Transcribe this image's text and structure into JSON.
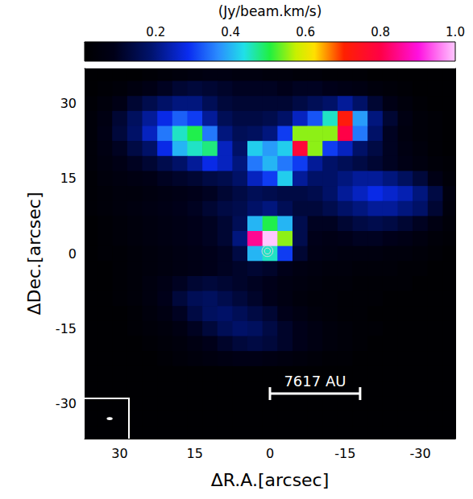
{
  "chart_data": {
    "type": "heatmap",
    "xlabel": "ΔR.A.[arcsec]",
    "ylabel": "ΔDec.[arcsec]",
    "xlim": [
      37,
      -37
    ],
    "ylim": [
      -37,
      37
    ],
    "xticks": [
      30,
      15,
      0,
      -15,
      -30
    ],
    "yticks": [
      -30,
      -15,
      0,
      15,
      30
    ],
    "x": [
      36,
      33,
      30,
      27,
      24,
      21,
      18,
      15,
      12,
      9,
      6,
      3,
      0,
      -3,
      -6,
      -9,
      -12,
      -15,
      -18,
      -21,
      -24,
      -27,
      -30,
      -33,
      -36
    ],
    "y": [
      36,
      33,
      30,
      27,
      24,
      21,
      18,
      15,
      12,
      9,
      6,
      3,
      0,
      -3,
      -6,
      -9,
      -12,
      -15,
      -18,
      -21,
      -24,
      -27,
      -30,
      -33,
      -36
    ],
    "z": [
      [
        0.02,
        0.02,
        0.02,
        0.02,
        0.03,
        0.04,
        0.05,
        0.06,
        0.07,
        0.07,
        0.06,
        0.06,
        0.05,
        0.05,
        0.04,
        0.04,
        0.03,
        0.03,
        0.03,
        0.02,
        0.02,
        0.02,
        0.02,
        0.02,
        0.02
      ],
      [
        0.02,
        0.03,
        0.04,
        0.06,
        0.08,
        0.1,
        0.12,
        0.13,
        0.12,
        0.11,
        0.1,
        0.1,
        0.1,
        0.09,
        0.1,
        0.1,
        0.09,
        0.08,
        0.07,
        0.05,
        0.04,
        0.03,
        0.02,
        0.02,
        0.02
      ],
      [
        0.03,
        0.05,
        0.08,
        0.12,
        0.15,
        0.18,
        0.2,
        0.2,
        0.16,
        0.13,
        0.12,
        0.12,
        0.12,
        0.12,
        0.14,
        0.16,
        0.18,
        0.22,
        0.18,
        0.12,
        0.08,
        0.05,
        0.03,
        0.02,
        0.02
      ],
      [
        0.04,
        0.07,
        0.12,
        0.17,
        0.22,
        0.28,
        0.33,
        0.3,
        0.22,
        0.16,
        0.14,
        0.14,
        0.15,
        0.18,
        0.25,
        0.32,
        0.45,
        0.72,
        0.38,
        0.2,
        0.12,
        0.07,
        0.04,
        0.03,
        0.02
      ],
      [
        0.04,
        0.08,
        0.13,
        0.18,
        0.25,
        0.35,
        0.45,
        0.5,
        0.35,
        0.2,
        0.16,
        0.17,
        0.2,
        0.3,
        0.55,
        0.55,
        0.55,
        0.8,
        0.35,
        0.18,
        0.1,
        0.06,
        0.04,
        0.03,
        0.02
      ],
      [
        0.04,
        0.07,
        0.1,
        0.14,
        0.18,
        0.28,
        0.4,
        0.45,
        0.48,
        0.25,
        0.18,
        0.42,
        0.38,
        0.42,
        0.78,
        0.55,
        0.3,
        0.25,
        0.18,
        0.14,
        0.1,
        0.07,
        0.05,
        0.03,
        0.02
      ],
      [
        0.04,
        0.06,
        0.08,
        0.1,
        0.12,
        0.15,
        0.18,
        0.22,
        0.28,
        0.25,
        0.2,
        0.35,
        0.4,
        0.35,
        0.3,
        0.22,
        0.18,
        0.16,
        0.14,
        0.12,
        0.1,
        0.08,
        0.06,
        0.04,
        0.03
      ],
      [
        0.03,
        0.05,
        0.06,
        0.07,
        0.08,
        0.1,
        0.11,
        0.12,
        0.14,
        0.15,
        0.18,
        0.25,
        0.3,
        0.42,
        0.22,
        0.18,
        0.18,
        0.2,
        0.22,
        0.22,
        0.2,
        0.17,
        0.13,
        0.08,
        0.04
      ],
      [
        0.03,
        0.04,
        0.05,
        0.05,
        0.06,
        0.07,
        0.08,
        0.09,
        0.1,
        0.12,
        0.14,
        0.16,
        0.15,
        0.14,
        0.14,
        0.15,
        0.18,
        0.22,
        0.25,
        0.28,
        0.26,
        0.24,
        0.2,
        0.14,
        0.06
      ],
      [
        0.03,
        0.04,
        0.05,
        0.06,
        0.07,
        0.08,
        0.09,
        0.1,
        0.12,
        0.14,
        0.15,
        0.18,
        0.2,
        0.16,
        0.13,
        0.13,
        0.15,
        0.18,
        0.2,
        0.22,
        0.22,
        0.2,
        0.18,
        0.12,
        0.05
      ],
      [
        0.02,
        0.03,
        0.04,
        0.05,
        0.06,
        0.07,
        0.08,
        0.09,
        0.1,
        0.12,
        0.16,
        0.4,
        0.5,
        0.4,
        0.15,
        0.1,
        0.1,
        0.12,
        0.14,
        0.15,
        0.14,
        0.12,
        0.1,
        0.07,
        0.04
      ],
      [
        0.02,
        0.03,
        0.04,
        0.05,
        0.06,
        0.07,
        0.08,
        0.09,
        0.1,
        0.12,
        0.2,
        0.85,
        1.0,
        0.55,
        0.15,
        0.09,
        0.08,
        0.09,
        0.1,
        0.1,
        0.09,
        0.08,
        0.06,
        0.04,
        0.03
      ],
      [
        0.02,
        0.03,
        0.03,
        0.04,
        0.05,
        0.06,
        0.07,
        0.08,
        0.09,
        0.1,
        0.14,
        0.4,
        0.45,
        0.3,
        0.12,
        0.08,
        0.07,
        0.06,
        0.06,
        0.06,
        0.05,
        0.05,
        0.04,
        0.03,
        0.02
      ],
      [
        0.02,
        0.02,
        0.03,
        0.04,
        0.05,
        0.06,
        0.07,
        0.08,
        0.09,
        0.1,
        0.11,
        0.12,
        0.11,
        0.09,
        0.07,
        0.06,
        0.05,
        0.05,
        0.04,
        0.04,
        0.04,
        0.03,
        0.03,
        0.02,
        0.02
      ],
      [
        0.02,
        0.02,
        0.03,
        0.04,
        0.06,
        0.08,
        0.1,
        0.12,
        0.13,
        0.12,
        0.11,
        0.1,
        0.09,
        0.07,
        0.06,
        0.05,
        0.04,
        0.04,
        0.03,
        0.03,
        0.03,
        0.03,
        0.02,
        0.02,
        0.02
      ],
      [
        0.02,
        0.02,
        0.03,
        0.04,
        0.06,
        0.09,
        0.13,
        0.16,
        0.17,
        0.15,
        0.13,
        0.11,
        0.09,
        0.07,
        0.05,
        0.04,
        0.04,
        0.03,
        0.03,
        0.03,
        0.02,
        0.02,
        0.02,
        0.02,
        0.02
      ],
      [
        0.02,
        0.02,
        0.02,
        0.03,
        0.05,
        0.07,
        0.1,
        0.14,
        0.17,
        0.18,
        0.16,
        0.14,
        0.12,
        0.09,
        0.07,
        0.05,
        0.04,
        0.03,
        0.03,
        0.02,
        0.02,
        0.02,
        0.02,
        0.02,
        0.02
      ],
      [
        0.02,
        0.02,
        0.02,
        0.03,
        0.04,
        0.05,
        0.07,
        0.1,
        0.13,
        0.16,
        0.18,
        0.17,
        0.14,
        0.11,
        0.09,
        0.07,
        0.05,
        0.04,
        0.03,
        0.03,
        0.02,
        0.02,
        0.02,
        0.02,
        0.02
      ],
      [
        0.02,
        0.02,
        0.02,
        0.02,
        0.03,
        0.04,
        0.05,
        0.07,
        0.09,
        0.11,
        0.13,
        0.14,
        0.13,
        0.11,
        0.09,
        0.07,
        0.05,
        0.04,
        0.03,
        0.02,
        0.02,
        0.02,
        0.02,
        0.02,
        0.02
      ],
      [
        0.02,
        0.02,
        0.02,
        0.02,
        0.02,
        0.03,
        0.04,
        0.05,
        0.06,
        0.07,
        0.08,
        0.08,
        0.07,
        0.06,
        0.05,
        0.04,
        0.03,
        0.03,
        0.02,
        0.02,
        0.02,
        0.02,
        0.02,
        0.02,
        0.02
      ],
      [
        0.02,
        0.02,
        0.02,
        0.02,
        0.02,
        0.02,
        0.02,
        0.02,
        0.02,
        0.02,
        0.02,
        0.02,
        0.02,
        0.02,
        0.02,
        0.02,
        0.02,
        0.02,
        0.02,
        0.02,
        0.02,
        0.02,
        0.02,
        0.02,
        0.02
      ],
      [
        0.02,
        0.02,
        0.02,
        0.02,
        0.02,
        0.02,
        0.02,
        0.02,
        0.02,
        0.02,
        0.02,
        0.02,
        0.02,
        0.02,
        0.02,
        0.02,
        0.02,
        0.02,
        0.02,
        0.02,
        0.02,
        0.02,
        0.02,
        0.02,
        0.02
      ],
      [
        0.02,
        0.02,
        0.02,
        0.02,
        0.02,
        0.02,
        0.02,
        0.02,
        0.02,
        0.02,
        0.02,
        0.02,
        0.02,
        0.02,
        0.02,
        0.02,
        0.02,
        0.02,
        0.02,
        0.02,
        0.02,
        0.02,
        0.02,
        0.02,
        0.02
      ],
      [
        0.02,
        0.02,
        0.02,
        0.02,
        0.02,
        0.02,
        0.02,
        0.02,
        0.02,
        0.02,
        0.02,
        0.02,
        0.02,
        0.02,
        0.02,
        0.02,
        0.02,
        0.02,
        0.02,
        0.02,
        0.02,
        0.02,
        0.02,
        0.02,
        0.02
      ],
      [
        0.02,
        0.02,
        0.02,
        0.02,
        0.02,
        0.02,
        0.02,
        0.02,
        0.02,
        0.02,
        0.02,
        0.02,
        0.02,
        0.02,
        0.02,
        0.02,
        0.02,
        0.02,
        0.02,
        0.02,
        0.02,
        0.02,
        0.02,
        0.02,
        0.02
      ]
    ],
    "colorbar": {
      "label": "(Jy/beam.km/s)",
      "lim": [
        0.01,
        1.0
      ],
      "ticks": [
        0.2,
        0.4,
        0.6,
        0.8,
        {
          "value": 1,
          "label": "1.0"
        }
      ]
    },
    "scale_bar": {
      "label": "7617 AU",
      "x": [
        0,
        -18
      ],
      "y": -28
    },
    "beam": {
      "x": 32,
      "y": -33,
      "major": 1.2,
      "minor": 0.6
    },
    "source": {
      "x": 0.5,
      "y": 0.5,
      "contour_radii": [
        0.6,
        1.1
      ]
    }
  }
}
